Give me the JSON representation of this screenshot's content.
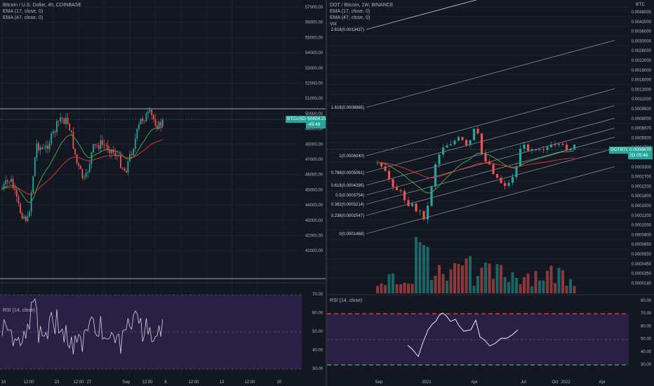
{
  "left_chart": {
    "symbol": "Bitcoin / U.S. Dollar, 4h, COINBASE",
    "indicators": [
      "EMA (17, close, 0)",
      "EMA (47, close, 0)"
    ],
    "price_axis": [
      "57000.00",
      "56000.00",
      "55000.00",
      "54000.00",
      "53000.00",
      "52000.00",
      "51000.00",
      "50000.00",
      "49000.00",
      "48000.00",
      "47000.00",
      "46000.00",
      "45000.00",
      "44000.00",
      "43000.00",
      "42000.00",
      "41000.00"
    ],
    "price_tag": {
      "symbol": "BTCUSD",
      "value": "50404.21",
      "countdown": "-45:48"
    },
    "time_axis": [
      "16",
      "12:00",
      "23",
      "12:00",
      "27",
      "Sep",
      "12:00",
      "6",
      "12:00",
      "13",
      "12:00",
      "20"
    ],
    "rsi_label": "RSI (14, close)",
    "rsi_axis": [
      "70.00",
      "60.00",
      "50.00",
      "40.00",
      "30.00"
    ],
    "colors": {
      "up": "#26a69a",
      "down": "#ef5350",
      "ema_fast": "#4caf50",
      "ema_slow": "#e53935",
      "rsi_line": "#d1d4dc",
      "rsi_band": "#2a1f45"
    }
  },
  "right_chart": {
    "symbol": "DOT / Bitcoin, 1W, BINANCE",
    "indicators": [
      "EMA (17, close, 0)",
      "EMA (47, close, 0)",
      "Vol"
    ],
    "currency": "BTC",
    "price_axis": [
      "0.0048000",
      "0.0042000",
      "0.0036000",
      "0.0030000",
      "0.0026000",
      "0.0022000",
      "0.0019000",
      "0.0016000",
      "0.0013000",
      "0.0011000",
      "0.0009500",
      "0.0008000",
      "0.0006670",
      "0.0005500",
      "0.0004700",
      "0.0003900",
      "0.0003300",
      "0.0002700",
      "0.0002200",
      "0.0001800",
      "0.0001500",
      "0.0001200",
      "0.0001000",
      "0.0000800",
      "0.0000650",
      "0.0000550",
      "0.0000450",
      "0.0000350",
      "0.0000180"
    ],
    "price_tag": {
      "symbol": "DOTBTC",
      "value": "0.0006670",
      "countdown": "2D 05:48"
    },
    "fib_levels": [
      "2.618(0.0013437)",
      "1.618(0.0008865)",
      "1(0.0006040)",
      "0.786(0.0005061)",
      "0.618(0.0004295)",
      "0.5(0.0003754)",
      "0.382(0.0003214)",
      "0.236(0.0002547)",
      "0(0.0001468)"
    ],
    "time_axis": [
      "Sep",
      "2021",
      "Apr",
      "Jul",
      "Oct",
      "2022",
      "Apr"
    ],
    "rsi_label": "RSI (14, close)",
    "rsi_axis": [
      "80.00",
      "70.00",
      "60.00",
      "50.00",
      "40.00",
      "30.00"
    ],
    "colors": {
      "fib_line": "#d1d4dc",
      "upper_rsi_line": "#f44336",
      "lower_rsi_line": "#4caf50"
    }
  }
}
